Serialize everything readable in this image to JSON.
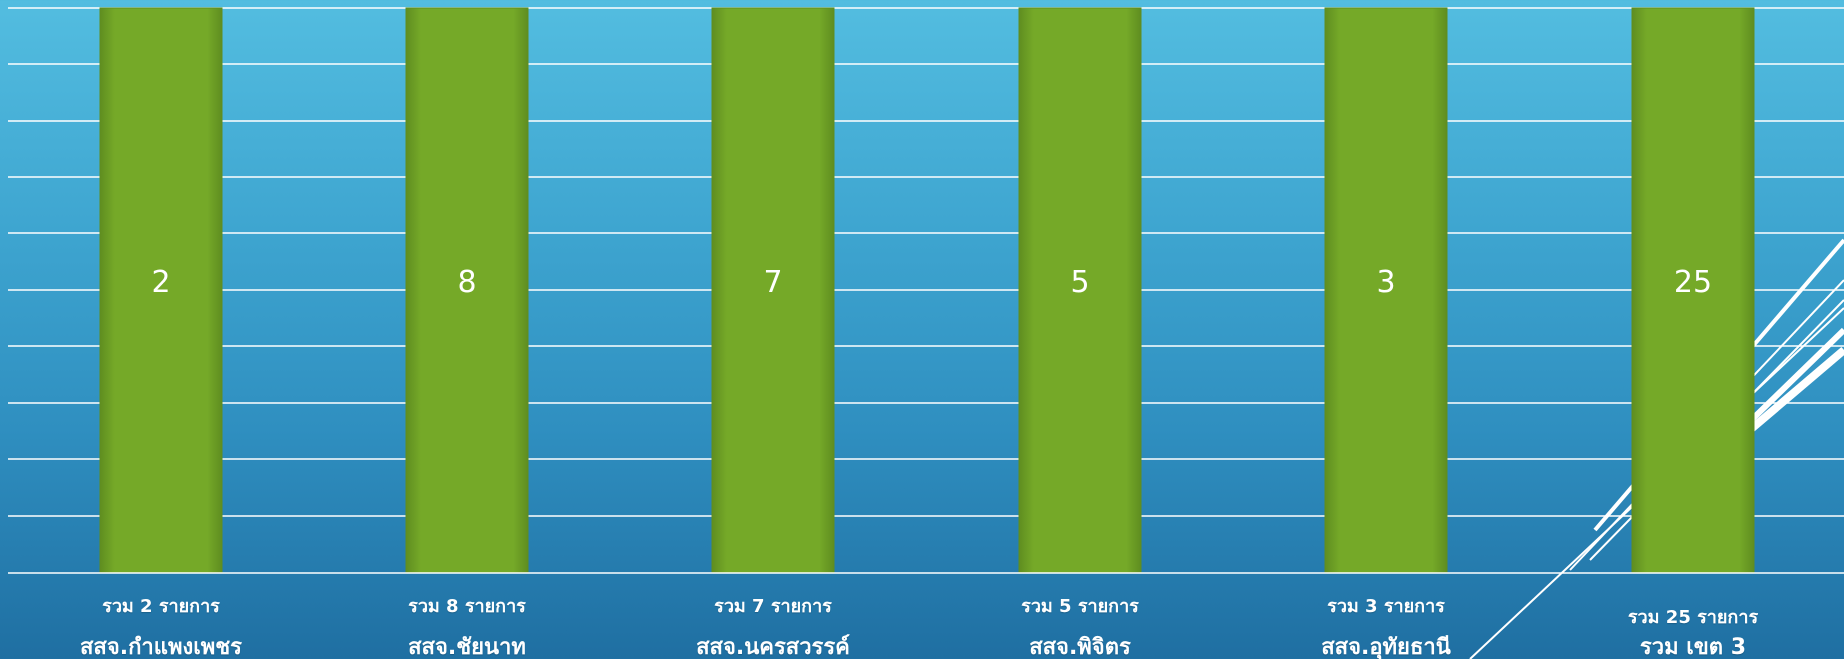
{
  "chart_data": {
    "type": "bar",
    "title": "",
    "xlabel": "",
    "ylabel": "",
    "categories": [
      "สสจ.กำแพงเพชร",
      "สสจ.ชัยนาท",
      "สสจ.นครสวรรค์",
      "สสจ.พิจิตร",
      "สสจ.อุทัยธานี",
      "รวม เขต 3"
    ],
    "count_labels": [
      "รวม 2 รายการ",
      "รวม 8 รายการ",
      "รวม 7 รายการ",
      "รวม 5 รายการ",
      "รวม 3 รายการ",
      "รวม 25 รายการ"
    ],
    "values": [
      2,
      8,
      7,
      5,
      3,
      25
    ],
    "value_labels": [
      "2",
      "8",
      "7",
      "5",
      "3",
      "25"
    ],
    "grid": true,
    "legend": "none"
  },
  "colors": {
    "bar": "#75a928",
    "bar_light": "#8fbf34",
    "bar_dark": "#5f8d20",
    "grid": "#ffffff",
    "text": "#ffffff"
  }
}
